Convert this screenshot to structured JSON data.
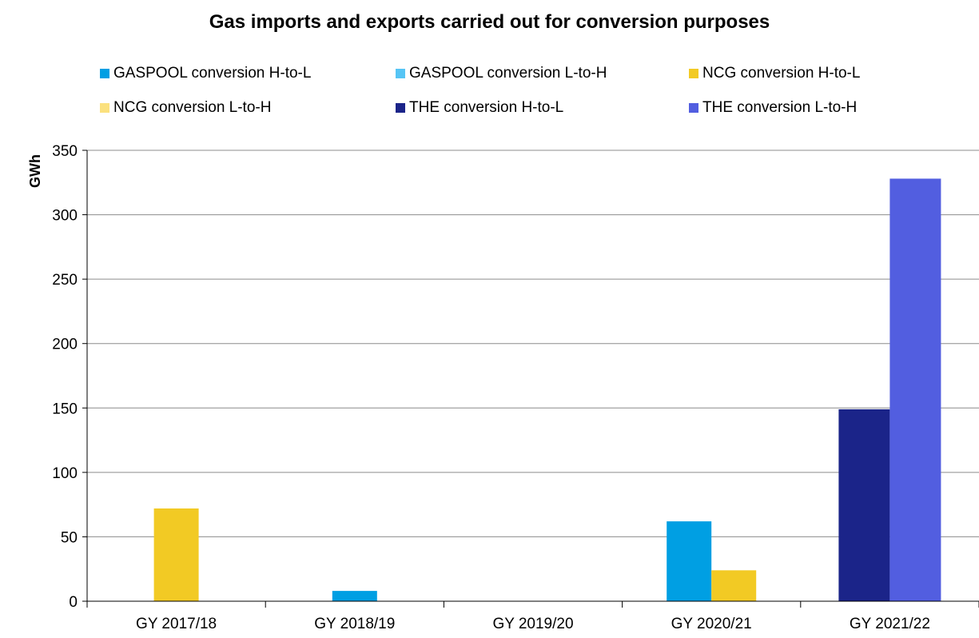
{
  "chart_data": {
    "type": "bar",
    "title": "Gas imports and exports carried out for conversion purposes",
    "ylabel": "GWh",
    "xlabel": "",
    "ylim": [
      0,
      350
    ],
    "yticks": [
      0,
      50,
      100,
      150,
      200,
      250,
      300,
      350
    ],
    "grid": true,
    "legend_position": "top",
    "categories": [
      "GY 2017/18",
      "GY 2018/19",
      "GY 2019/20",
      "GY 2020/21",
      "GY 2021/22"
    ],
    "series": [
      {
        "name": "GASPOOL conversion H-to-L",
        "color": "#009fe3",
        "values": [
          0,
          8,
          0,
          62,
          0
        ]
      },
      {
        "name": "GASPOOL conversion L-to-H",
        "color": "#56c5f5",
        "values": [
          0,
          0,
          0,
          0,
          0
        ]
      },
      {
        "name": "NCG conversion H-to-L",
        "color": "#f2ca24",
        "values": [
          72,
          0,
          0,
          24,
          0
        ]
      },
      {
        "name": "NCG conversion L-to-H",
        "color": "#fbe17e",
        "values": [
          0,
          0,
          0,
          0,
          0
        ]
      },
      {
        "name": "THE conversion H-to-L",
        "color": "#1b2489",
        "values": [
          0,
          0,
          0,
          0,
          149
        ]
      },
      {
        "name": "THE conversion L-to-H",
        "color": "#525ee0",
        "values": [
          0,
          0,
          0,
          0,
          328
        ]
      }
    ]
  }
}
